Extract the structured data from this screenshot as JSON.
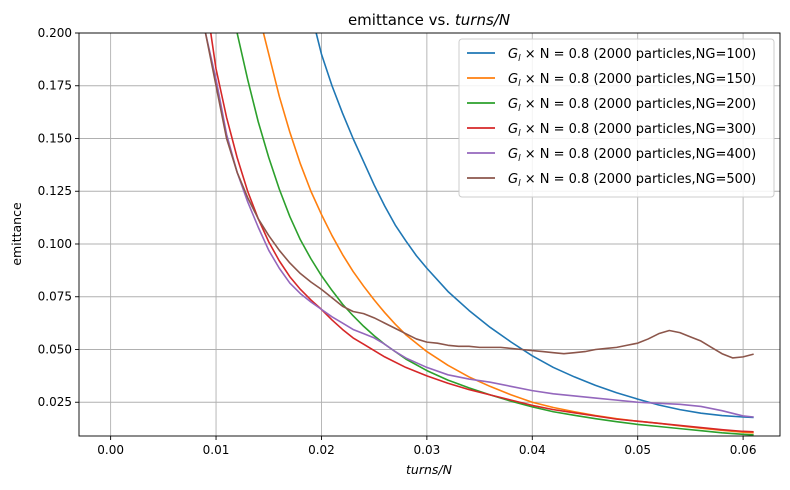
{
  "chart_data": {
    "type": "line",
    "title_prefix": "emittance vs. ",
    "title_italic": "turns/N",
    "xlabel": "turns/N",
    "ylabel": "emittance",
    "xlim": [
      -0.003,
      0.0635
    ],
    "ylim": [
      0.009,
      0.2
    ],
    "xticks": [
      0.0,
      0.01,
      0.02,
      0.03,
      0.04,
      0.05,
      0.06
    ],
    "xtick_labels": [
      "0.00",
      "0.01",
      "0.02",
      "0.03",
      "0.04",
      "0.05",
      "0.06"
    ],
    "yticks": [
      0.025,
      0.05,
      0.075,
      0.1,
      0.125,
      0.15,
      0.175,
      0.2
    ],
    "ytick_labels": [
      "0.025",
      "0.050",
      "0.075",
      "0.100",
      "0.125",
      "0.150",
      "0.175",
      "0.200"
    ],
    "grid": true,
    "legend_position": "top-right",
    "legend_math": "G",
    "legend_math_sub": "l",
    "legend_math_rest": " × N = 0.8",
    "series": [
      {
        "name": "(2000 particles,NG=100)",
        "color": "#1f77b4",
        "x": [
          0.0195,
          0.02,
          0.021,
          0.022,
          0.023,
          0.024,
          0.025,
          0.026,
          0.027,
          0.028,
          0.029,
          0.03,
          0.032,
          0.034,
          0.036,
          0.038,
          0.04,
          0.042,
          0.044,
          0.046,
          0.048,
          0.05,
          0.052,
          0.054,
          0.056,
          0.058,
          0.06,
          0.061
        ],
        "y": [
          0.2,
          0.19,
          0.175,
          0.162,
          0.15,
          0.139,
          0.128,
          0.118,
          0.109,
          0.1015,
          0.0945,
          0.0885,
          0.0775,
          0.0685,
          0.0605,
          0.0535,
          0.047,
          0.0415,
          0.037,
          0.033,
          0.0295,
          0.0265,
          0.0237,
          0.0215,
          0.0198,
          0.0187,
          0.018,
          0.0178
        ]
      },
      {
        "name": "(2000 particles,NG=150)",
        "color": "#ff7f0e",
        "x": [
          0.0145,
          0.015,
          0.016,
          0.017,
          0.018,
          0.019,
          0.02,
          0.021,
          0.022,
          0.023,
          0.024,
          0.025,
          0.026,
          0.027,
          0.028,
          0.03,
          0.032,
          0.034,
          0.036,
          0.038,
          0.04,
          0.042,
          0.044,
          0.046,
          0.048,
          0.05,
          0.052,
          0.054,
          0.056,
          0.058,
          0.06,
          0.061
        ],
        "y": [
          0.2,
          0.19,
          0.17,
          0.153,
          0.138,
          0.125,
          0.114,
          0.104,
          0.095,
          0.087,
          0.08,
          0.0735,
          0.0675,
          0.062,
          0.057,
          0.049,
          0.0425,
          0.037,
          0.0325,
          0.0285,
          0.025,
          0.0225,
          0.0205,
          0.0187,
          0.0172,
          0.016,
          0.015,
          0.0138,
          0.0127,
          0.0117,
          0.0108,
          0.0105
        ]
      },
      {
        "name": "(2000 particles,NG=200)",
        "color": "#2ca02c",
        "x": [
          0.012,
          0.013,
          0.014,
          0.015,
          0.016,
          0.017,
          0.018,
          0.019,
          0.02,
          0.021,
          0.022,
          0.023,
          0.024,
          0.025,
          0.026,
          0.028,
          0.03,
          0.032,
          0.034,
          0.036,
          0.038,
          0.04,
          0.042,
          0.044,
          0.046,
          0.048,
          0.05,
          0.052,
          0.054,
          0.056,
          0.058,
          0.06,
          0.061
        ],
        "y": [
          0.2,
          0.178,
          0.158,
          0.141,
          0.126,
          0.113,
          0.102,
          0.093,
          0.085,
          0.078,
          0.0715,
          0.066,
          0.061,
          0.0565,
          0.0525,
          0.0455,
          0.04,
          0.0355,
          0.0318,
          0.0285,
          0.0255,
          0.0228,
          0.0205,
          0.0188,
          0.0172,
          0.0158,
          0.0145,
          0.0135,
          0.0125,
          0.0115,
          0.0105,
          0.0098,
          0.0095
        ]
      },
      {
        "name": "(2000 particles,NG=300)",
        "color": "#d62728",
        "x": [
          0.0095,
          0.01,
          0.011,
          0.012,
          0.013,
          0.014,
          0.015,
          0.016,
          0.017,
          0.018,
          0.019,
          0.02,
          0.021,
          0.022,
          0.023,
          0.024,
          0.025,
          0.026,
          0.028,
          0.03,
          0.032,
          0.034,
          0.036,
          0.038,
          0.04,
          0.042,
          0.044,
          0.046,
          0.048,
          0.05,
          0.052,
          0.054,
          0.056,
          0.058,
          0.06,
          0.061
        ],
        "y": [
          0.2,
          0.183,
          0.16,
          0.141,
          0.125,
          0.112,
          0.101,
          0.092,
          0.0845,
          0.0785,
          0.0735,
          0.069,
          0.064,
          0.0595,
          0.0555,
          0.0525,
          0.0495,
          0.0465,
          0.0415,
          0.0375,
          0.034,
          0.031,
          0.0285,
          0.026,
          0.0235,
          0.0215,
          0.02,
          0.0185,
          0.017,
          0.016,
          0.015,
          0.014,
          0.013,
          0.012,
          0.0112,
          0.011
        ]
      },
      {
        "name": "(2000 particles,NG=400)",
        "color": "#9467bd",
        "x": [
          0.009,
          0.01,
          0.011,
          0.012,
          0.013,
          0.014,
          0.015,
          0.016,
          0.017,
          0.018,
          0.019,
          0.02,
          0.021,
          0.022,
          0.023,
          0.024,
          0.025,
          0.026,
          0.027,
          0.028,
          0.03,
          0.032,
          0.034,
          0.036,
          0.038,
          0.04,
          0.042,
          0.044,
          0.046,
          0.048,
          0.05,
          0.052,
          0.054,
          0.056,
          0.058,
          0.06,
          0.061
        ],
        "y": [
          0.2,
          0.178,
          0.152,
          0.134,
          0.12,
          0.108,
          0.097,
          0.0885,
          0.0815,
          0.0765,
          0.0725,
          0.069,
          0.0655,
          0.0625,
          0.0595,
          0.0575,
          0.0555,
          0.0525,
          0.049,
          0.046,
          0.0415,
          0.038,
          0.036,
          0.0345,
          0.0325,
          0.0305,
          0.029,
          0.028,
          0.027,
          0.026,
          0.025,
          0.0245,
          0.024,
          0.023,
          0.021,
          0.0185,
          0.018
        ]
      },
      {
        "name": "(2000 particles,NG=500)",
        "color": "#8c564b",
        "x": [
          0.009,
          0.01,
          0.011,
          0.012,
          0.013,
          0.014,
          0.015,
          0.016,
          0.017,
          0.018,
          0.019,
          0.02,
          0.021,
          0.022,
          0.023,
          0.024,
          0.025,
          0.026,
          0.027,
          0.028,
          0.029,
          0.03,
          0.031,
          0.032,
          0.033,
          0.034,
          0.035,
          0.036,
          0.037,
          0.038,
          0.039,
          0.04,
          0.041,
          0.042,
          0.043,
          0.044,
          0.045,
          0.046,
          0.047,
          0.048,
          0.049,
          0.05,
          0.051,
          0.052,
          0.053,
          0.054,
          0.055,
          0.056,
          0.057,
          0.058,
          0.059,
          0.06,
          0.061
        ],
        "y": [
          0.2,
          0.175,
          0.15,
          0.134,
          0.122,
          0.112,
          0.104,
          0.097,
          0.091,
          0.086,
          0.082,
          0.0785,
          0.0745,
          0.0705,
          0.068,
          0.067,
          0.065,
          0.0625,
          0.06,
          0.0575,
          0.055,
          0.0535,
          0.053,
          0.052,
          0.0515,
          0.0515,
          0.051,
          0.051,
          0.051,
          0.0505,
          0.05,
          0.0495,
          0.049,
          0.0485,
          0.048,
          0.0485,
          0.049,
          0.05,
          0.0505,
          0.051,
          0.052,
          0.053,
          0.055,
          0.0575,
          0.059,
          0.058,
          0.056,
          0.054,
          0.051,
          0.048,
          0.046,
          0.0465,
          0.0478
        ]
      }
    ]
  }
}
